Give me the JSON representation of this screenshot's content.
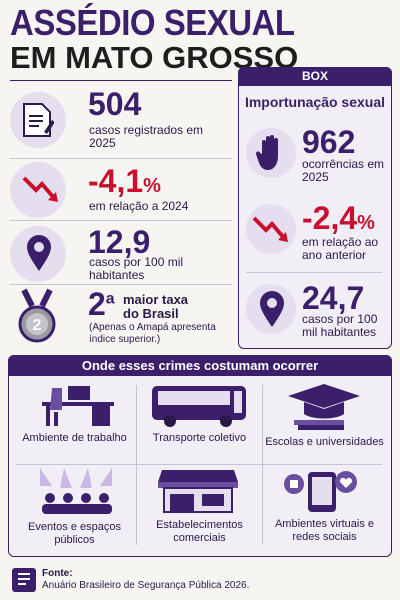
{
  "header": {
    "title_line1": "ASSÉDIO SEXUAL",
    "title_line2": "EM MATO GROSSO"
  },
  "stats": [
    {
      "value": "504",
      "label": "casos registrados em 2025"
    },
    {
      "value": "-4,1",
      "unit": "%",
      "label": "em relação a 2024"
    },
    {
      "value": "12,9",
      "label": "casos por 100 mil habitantes"
    },
    {
      "value": "2",
      "sup": "a",
      "label": "maior taxa do Brasil",
      "note": "(Apenas o Amapá apresenta índice superior.)"
    }
  ],
  "box": {
    "tag": "BOX",
    "title": "Importunação sexual",
    "stats": [
      {
        "value": "962",
        "label": "ocorrências em 2025"
      },
      {
        "value": "-2,4",
        "unit": "%",
        "label": "em relação ao ano anterior"
      },
      {
        "value": "24,7",
        "label": "casos por 100 mil habitantes"
      }
    ]
  },
  "places": {
    "title": "Onde esses crimes costumam ocorrer",
    "items": [
      "Ambiente de trabalho",
      "Transporte coletivo",
      "Escolas e universidades",
      "Eventos e espaços públicos",
      "Estabelecimentos comerciais",
      "Ambientes virtuais e redes sociais"
    ]
  },
  "source": {
    "label": "Fonte:",
    "text": "Anuário Brasileiro de Segurança Pública 2026."
  }
}
